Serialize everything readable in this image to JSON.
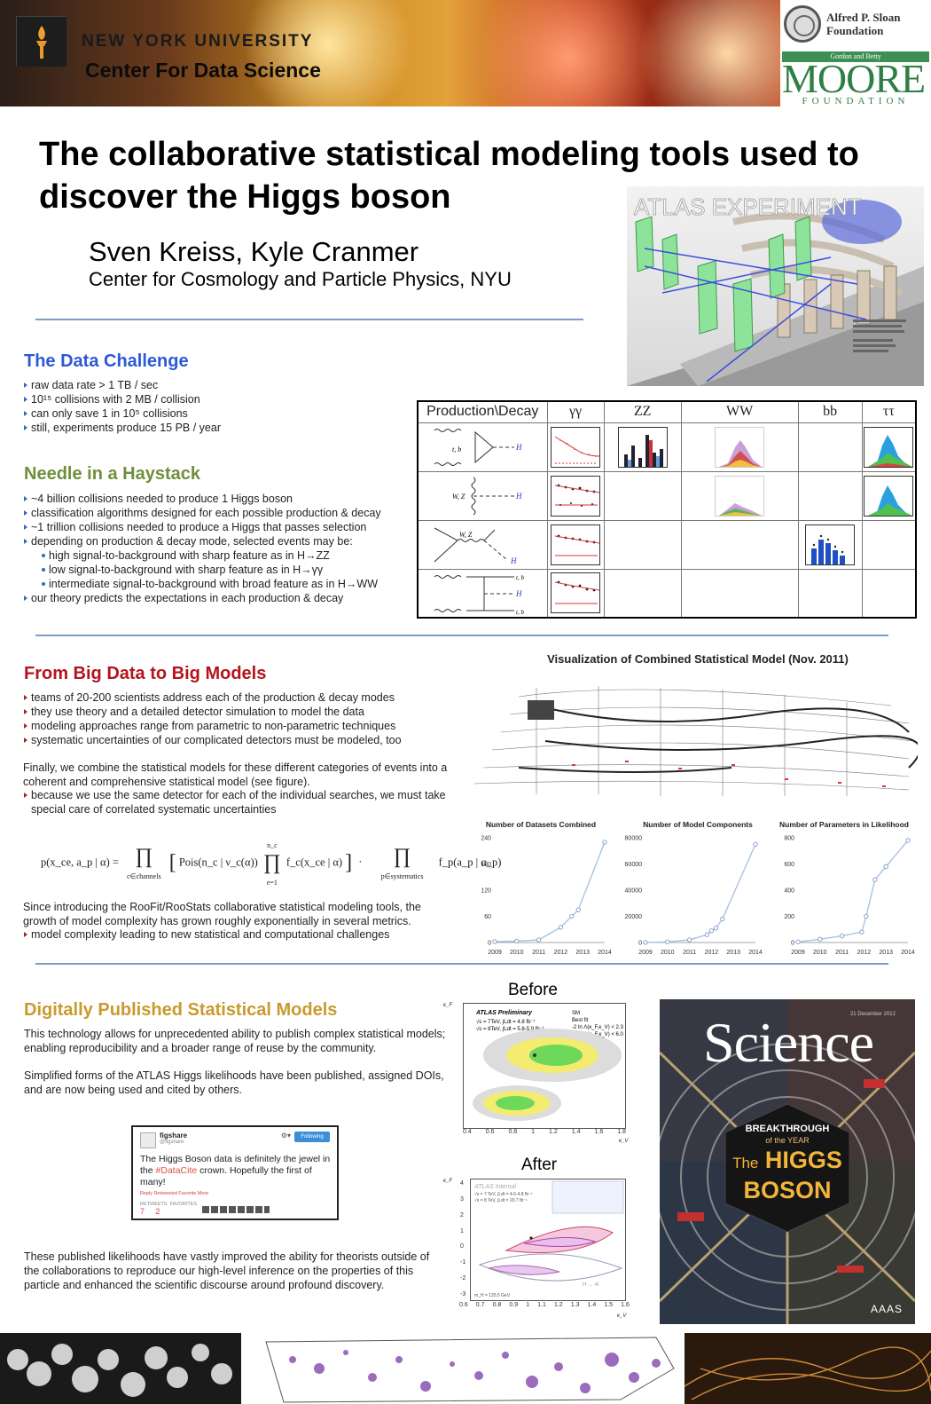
{
  "header": {
    "university": "NEW YORK UNIVERSITY",
    "center": "Center For Data Science",
    "sponsor1_line1": "Alfred P. Sloan",
    "sponsor1_line2": "Foundation",
    "sponsor2_top": "Gordon and Betty",
    "sponsor2_main": "MOORE",
    "sponsor2_bottom": "FOUNDATION"
  },
  "title": "The collaborative statistical modeling tools used to discover the Higgs boson",
  "authors": "Sven Kreiss, Kyle Cranmer",
  "affiliation": "Center for Cosmology and Particle Physics, NYU",
  "atlas_label": "ATLAS EXPERIMENT",
  "data_challenge": {
    "heading": "The Data Challenge",
    "items": [
      "raw data rate > 1 TB / sec",
      "10¹⁵ collisions with 2 MB / collision",
      "can only save 1 in 10⁵ collisions",
      "still, experiments produce 15 PB / year"
    ]
  },
  "needle": {
    "heading": "Needle in a Haystack",
    "items": [
      "~4 billion collisions needed to produce 1 Higgs boson",
      "classification algorithms designed for each possible production & decay",
      "~1 trillion collisions needed to produce a Higgs that passes selection",
      "depending on production & decay mode, selected events may be:"
    ],
    "subitems": [
      "high signal-to-background with sharp feature as in H→ZZ",
      "low signal-to-background with sharp feature as in H→γγ",
      "intermediate signal-to-background with broad feature as in H→WW"
    ],
    "last": "our theory predicts the expectations in each production & decay"
  },
  "table": {
    "headers": [
      "Production\\Decay",
      "γγ",
      "ZZ",
      "WW",
      "bb",
      "ττ"
    ],
    "diagram_labels": [
      "t, b",
      "W, Z",
      "W, Z",
      "t, b"
    ],
    "higgs_label": "H"
  },
  "big_models": {
    "heading": "From Big Data to Big Models",
    "items": [
      "teams of 20-200 scientists address each of the production & decay modes",
      "they use theory and a detailed detector simulation to model the data",
      "modeling approaches range from parametric to non-parametric techniques",
      "systematic uncertainties of our complicated detectors must be modeled, too"
    ],
    "para1": "Finally, we combine the statistical models for these different categories of events into a coherent and comprehensive statistical model (see figure).",
    "item2": "because we use the same detector for each of the individual searches, we must take special care of correlated systematic uncertainties",
    "para2": "Since introducing the RooFit/RooStats collaborative statistical modeling tools, the growth of model complexity has grown roughly exponentially in several metrics.",
    "item3": "model complexity leading to new statistical and computational challenges"
  },
  "viz_title": "Visualization of Combined Statistical Model (Nov. 2011)",
  "chart_data": [
    {
      "type": "line",
      "title": "Number of Datasets Combined",
      "x": [
        2009,
        2010,
        2011,
        2012,
        2012.5,
        2012.8,
        2014
      ],
      "values": [
        2,
        3,
        6,
        35,
        60,
        75,
        230
      ],
      "ylim": [
        0,
        240
      ],
      "yticks": [
        "0",
        "60",
        "120",
        "180",
        "240"
      ],
      "xticks": [
        "2009",
        "2010",
        "2011",
        "2012",
        "2013",
        "2014"
      ]
    },
    {
      "type": "line",
      "title": "Number of Model Components",
      "x": [
        2009,
        2010,
        2011,
        2011.8,
        2012,
        2012.2,
        2012.5,
        2014
      ],
      "values": [
        100,
        500,
        2000,
        6000,
        9000,
        11000,
        18000,
        75000
      ],
      "ylim": [
        0,
        80000
      ],
      "yticks": [
        "0",
        "20000",
        "40000",
        "60000",
        "80000"
      ],
      "xticks": [
        "2009",
        "2010",
        "2011",
        "2012",
        "2013",
        "2014"
      ]
    },
    {
      "type": "line",
      "title": "Number of Parameters in Likelihood",
      "x": [
        2009,
        2010,
        2011,
        2011.9,
        2012.1,
        2012.5,
        2013,
        2014
      ],
      "values": [
        5,
        25,
        50,
        80,
        200,
        480,
        580,
        780
      ],
      "ylim": [
        0,
        800
      ],
      "yticks": [
        "0",
        "200",
        "400",
        "600",
        "800"
      ],
      "xticks": [
        "2009",
        "2010",
        "2011",
        "2012",
        "2013",
        "2014"
      ]
    }
  ],
  "formula": {
    "lhs": "p(x_ce, a_p | α) =",
    "prod1_sub": "c∈channels",
    "pois": "Pois(n_c | ν_c(α))",
    "prod2_sub": "e=1",
    "prod2_sup": "n_c",
    "fc": "f_c(x_ce | α)",
    "prod3_sub": "p∈systematics",
    "fp": "f_p(a_p | α_p)"
  },
  "published": {
    "heading": "Digitally Published Statistical Models",
    "para1": "This technology allows for unprecedented ability to publish complex statistical models; enabling reproducibility and a broader range of reuse by the community.",
    "para2": "Simplified forms of the ATLAS Higgs likelihoods have been published, assigned DOIs, and are now being used and cited by others.",
    "para3": "These published likelihoods have vastly improved the ability for theorists outside of the collaborations to reproduce our high-level inference on the properties of this particle and enhanced the scientific discourse around profound discovery."
  },
  "tweet": {
    "name": "figshare",
    "handle": "@figshare",
    "follow": "Following",
    "text_before": "The Higgs Boson data is definitely the jewel in the ",
    "hashtag": "#DataCite",
    "text_after": " crown. Hopefully the first of many!",
    "actions": "Reply   Retweeted   Favorite   More",
    "retweets_label": "RETWEETS",
    "favorites_label": "FAVORITES",
    "retweets": "7",
    "favorites": "2"
  },
  "before_label": "Before",
  "after_label": "After",
  "before_plot": {
    "legend_title": "ATLAS Preliminary",
    "legend": [
      "SM",
      "Best fit",
      "-2 ln Λ(κ_F,κ_V) < 2.3",
      "-2 ln Λ(κ_F,κ_V) < 6.0"
    ],
    "lumi1": "√s = 7TeV, ∫Ldt = 4.8 fb⁻¹",
    "lumi2": "√s = 8TeV, ∫Ldt = 5.8-5.9 fb⁻¹",
    "xticks": [
      "0.4",
      "0.6",
      "0.8",
      "1",
      "1.2",
      "1.4",
      "1.6",
      "1.8"
    ],
    "xlabel": "κ_V",
    "ylabel": "κ_F"
  },
  "after_plot": {
    "legend_title": "ATLAS Internal",
    "lumi1": "√s = 7 TeV, ∫Ldt = 4.6-4.8 fb⁻¹",
    "lumi2": "√s = 8 TeV, ∫Ldt = 20.7 fb⁻¹",
    "mass": "m_H = 125.5 GeV",
    "label": "H → 4l",
    "xticks": [
      "0.6",
      "0.7",
      "0.8",
      "0.9",
      "1",
      "1.1",
      "1.2",
      "1.3",
      "1.4",
      "1.5",
      "1.6"
    ],
    "yticks": [
      "4",
      "3",
      "2",
      "1",
      "0",
      "-1",
      "-2",
      "-3"
    ],
    "xlabel": "κ_V",
    "ylabel": "κ_F"
  },
  "science": {
    "title": "Science",
    "date": "21 December 2012",
    "breakthrough": "BREAKTHROUGH",
    "of_the_year": "of the YEAR",
    "the": "The",
    "higgs": "HIGGS",
    "boson": "BOSON",
    "publisher": "AAAS"
  },
  "colors": {
    "blue_heading": "#2d58d6",
    "green_heading": "#6f8f3a",
    "red_heading": "#b3141e",
    "gold_heading": "#c99a2e",
    "rule": "#7d9bc7"
  }
}
